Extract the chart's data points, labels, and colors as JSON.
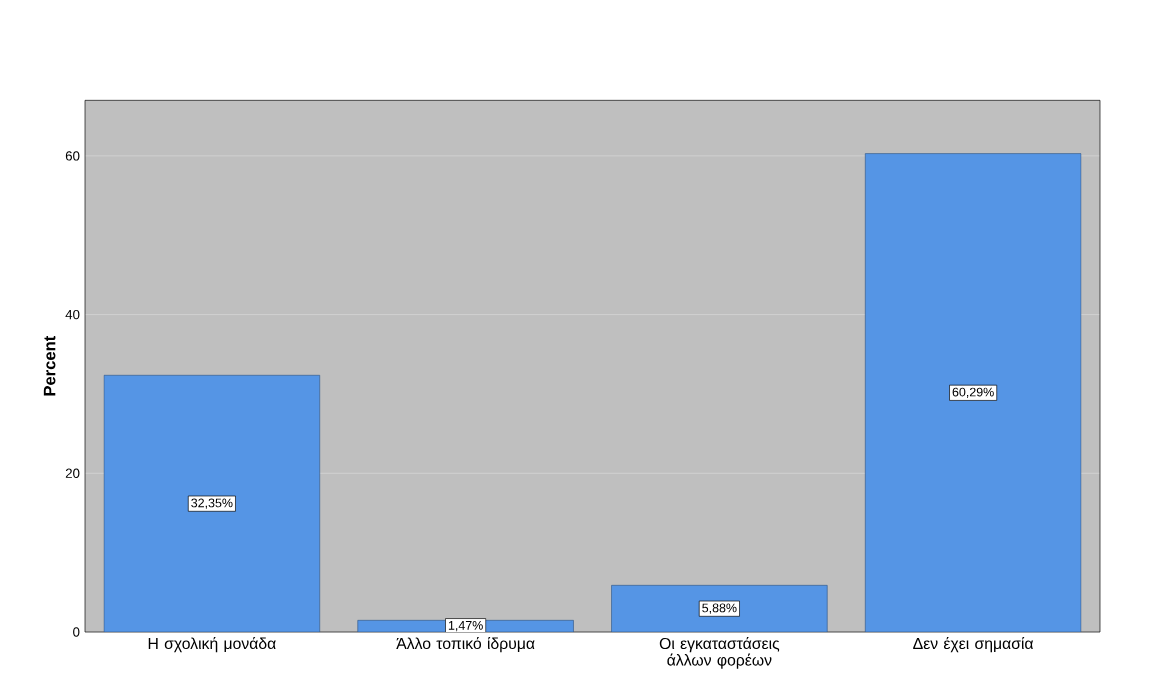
{
  "chart_data": {
    "type": "bar",
    "ylabel": "Percent",
    "categories": [
      "Η σχολική μονάδα",
      "Άλλο τοπικό ίδρυμα",
      "Οι εγκαταστάσεις άλλων φορέων",
      "Δεν έχει σημασία"
    ],
    "values": [
      32.35,
      1.47,
      5.88,
      60.29
    ],
    "value_labels": [
      "32,35%",
      "1,47%",
      "5,88%",
      "60,29%"
    ],
    "color": "#5595e5",
    "ylim": [
      0,
      67
    ],
    "yticks": [
      0,
      20,
      40,
      60
    ],
    "grid": "y"
  }
}
